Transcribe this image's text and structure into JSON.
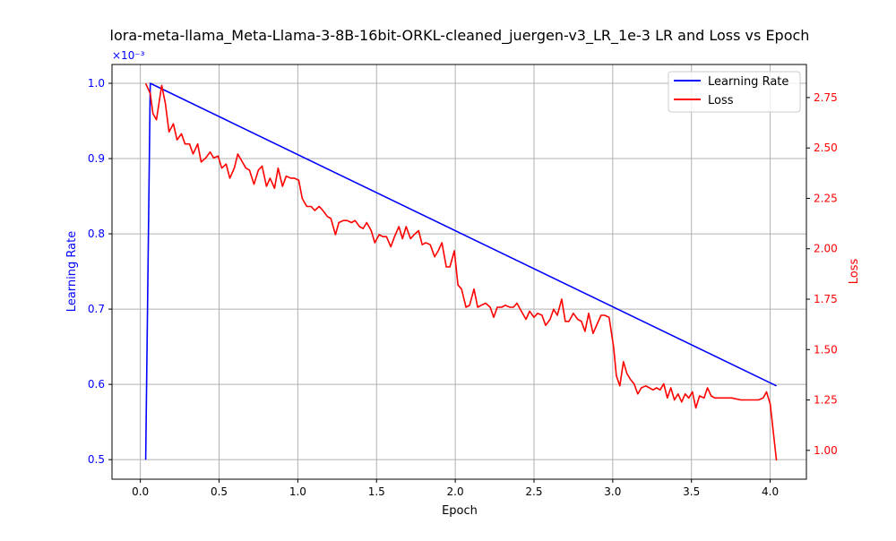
{
  "chart_data": {
    "type": "line",
    "title": "lora-meta-llama_Meta-Llama-3-8B-16bit-ORKL-cleaned_juergen-v3_LR_1e-3 LR and Loss vs Epoch",
    "xlabel": "Epoch",
    "ylabel_left": "Learning Rate",
    "ylabel_right": "Loss",
    "left_axis_offset_label": "×10⁻³",
    "xlim": [
      -0.18,
      4.23
    ],
    "ylim_left": [
      0.474,
      1.025
    ],
    "ylim_right": [
      0.857,
      2.914
    ],
    "x_ticks": [
      0.0,
      0.5,
      1.0,
      1.5,
      2.0,
      2.5,
      3.0,
      3.5,
      4.0
    ],
    "x_tick_labels": [
      "0.0",
      "0.5",
      "1.0",
      "1.5",
      "2.0",
      "2.5",
      "3.0",
      "3.5",
      "4.0"
    ],
    "left_ticks": [
      0.5,
      0.6,
      0.7,
      0.8,
      0.9,
      1.0
    ],
    "left_tick_labels": [
      "0.5",
      "0.6",
      "0.7",
      "0.8",
      "0.9",
      "1.0"
    ],
    "right_ticks": [
      1.0,
      1.25,
      1.5,
      1.75,
      2.0,
      2.25,
      2.5,
      2.75
    ],
    "right_tick_labels": [
      "1.00",
      "1.25",
      "1.50",
      "1.75",
      "2.00",
      "2.25",
      "2.50",
      "2.75"
    ],
    "grid": true,
    "legend_placement": "top-right",
    "colors": {
      "lr": "#0000ff",
      "loss": "#ff0000",
      "grid": "#b0b0b0"
    },
    "series": [
      {
        "name": "Learning Rate",
        "axis": "left",
        "x": [
          0.034,
          0.063,
          4.04
        ],
        "y": [
          0.5,
          1.0,
          0.598
        ]
      },
      {
        "name": "Loss",
        "axis": "right",
        "x": [
          0.034,
          0.063,
          0.08,
          0.102,
          0.136,
          0.159,
          0.182,
          0.21,
          0.233,
          0.261,
          0.284,
          0.312,
          0.335,
          0.364,
          0.386,
          0.415,
          0.443,
          0.466,
          0.494,
          0.517,
          0.545,
          0.568,
          0.597,
          0.619,
          0.648,
          0.67,
          0.693,
          0.722,
          0.75,
          0.773,
          0.801,
          0.824,
          0.852,
          0.875,
          0.903,
          0.926,
          0.955,
          0.977,
          1.006,
          1.028,
          1.057,
          1.085,
          1.108,
          1.136,
          1.159,
          1.188,
          1.21,
          1.239,
          1.261,
          1.29,
          1.313,
          1.341,
          1.364,
          1.392,
          1.415,
          1.438,
          1.466,
          1.489,
          1.517,
          1.54,
          1.563,
          1.591,
          1.614,
          1.642,
          1.665,
          1.688,
          1.716,
          1.739,
          1.767,
          1.79,
          1.813,
          1.841,
          1.869,
          1.892,
          1.915,
          1.943,
          1.966,
          1.994,
          2.017,
          2.04,
          2.068,
          2.091,
          2.119,
          2.142,
          2.165,
          2.193,
          2.222,
          2.244,
          2.267,
          2.295,
          2.318,
          2.347,
          2.369,
          2.392,
          2.42,
          2.449,
          2.472,
          2.5,
          2.523,
          2.551,
          2.574,
          2.602,
          2.625,
          2.648,
          2.676,
          2.699,
          2.722,
          2.75,
          2.778,
          2.801,
          2.824,
          2.847,
          2.875,
          2.903,
          2.926,
          2.949,
          2.977,
          3.006,
          3.023,
          3.045,
          3.068,
          3.091,
          3.114,
          3.136,
          3.159,
          3.182,
          3.21,
          3.233,
          3.256,
          3.278,
          3.301,
          3.324,
          3.347,
          3.369,
          3.392,
          3.415,
          3.438,
          3.46,
          3.483,
          3.506,
          3.528,
          3.551,
          3.58,
          3.602,
          3.625,
          3.648,
          3.699,
          3.756,
          3.813,
          3.869,
          3.926,
          3.955,
          3.977,
          4.0,
          4.04
        ],
        "y": [
          2.82,
          2.77,
          2.67,
          2.64,
          2.81,
          2.72,
          2.58,
          2.62,
          2.54,
          2.57,
          2.52,
          2.52,
          2.47,
          2.52,
          2.43,
          2.45,
          2.48,
          2.45,
          2.46,
          2.4,
          2.42,
          2.35,
          2.4,
          2.47,
          2.43,
          2.4,
          2.39,
          2.32,
          2.39,
          2.41,
          2.31,
          2.35,
          2.3,
          2.4,
          2.31,
          2.36,
          2.35,
          2.35,
          2.34,
          2.25,
          2.21,
          2.21,
          2.19,
          2.21,
          2.19,
          2.16,
          2.15,
          2.07,
          2.13,
          2.14,
          2.14,
          2.13,
          2.14,
          2.11,
          2.1,
          2.13,
          2.09,
          2.03,
          2.07,
          2.06,
          2.06,
          2.01,
          2.06,
          2.11,
          2.05,
          2.11,
          2.05,
          2.07,
          2.09,
          2.02,
          2.03,
          2.02,
          1.96,
          1.99,
          2.03,
          1.91,
          1.91,
          1.99,
          1.82,
          1.8,
          1.71,
          1.72,
          1.8,
          1.71,
          1.72,
          1.73,
          1.71,
          1.66,
          1.71,
          1.71,
          1.72,
          1.71,
          1.71,
          1.73,
          1.69,
          1.65,
          1.69,
          1.66,
          1.68,
          1.67,
          1.62,
          1.65,
          1.7,
          1.67,
          1.75,
          1.64,
          1.64,
          1.68,
          1.65,
          1.64,
          1.59,
          1.68,
          1.58,
          1.63,
          1.67,
          1.67,
          1.66,
          1.51,
          1.37,
          1.32,
          1.44,
          1.38,
          1.35,
          1.33,
          1.28,
          1.31,
          1.32,
          1.31,
          1.3,
          1.31,
          1.3,
          1.33,
          1.26,
          1.31,
          1.25,
          1.28,
          1.24,
          1.28,
          1.26,
          1.29,
          1.21,
          1.27,
          1.26,
          1.31,
          1.27,
          1.26,
          1.26,
          1.26,
          1.25,
          1.25,
          1.25,
          1.26,
          1.29,
          1.23,
          0.95
        ]
      }
    ]
  }
}
